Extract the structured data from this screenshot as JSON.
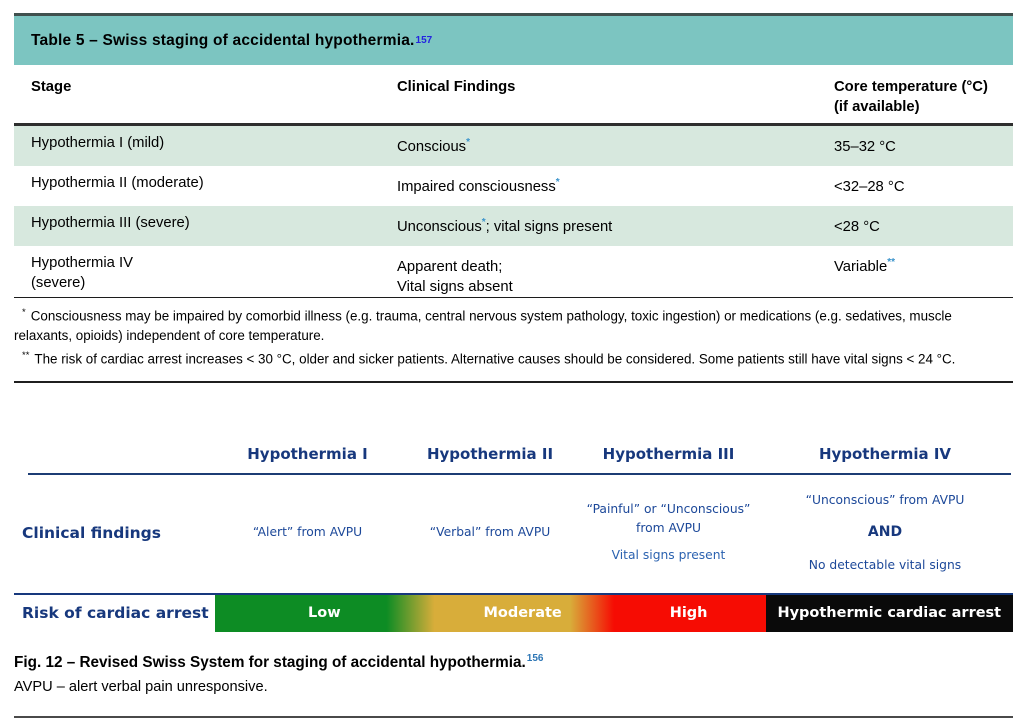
{
  "table": {
    "title": "Table 5 – Swiss staging of accidental hypothermia.",
    "title_ref": "157",
    "header": {
      "col1": "Stage",
      "col2": "Clinical Findings",
      "col3_line1": "Core temperature (°C)",
      "col3_line2": "(if available)"
    },
    "rows": [
      {
        "stage_line1": "Hypothermia I (mild)",
        "stage_line2": "",
        "findings_pre": "Conscious",
        "findings_star": "*",
        "findings_post": "",
        "findings_line2": "",
        "temp": "35–32 °C",
        "temp_star": ""
      },
      {
        "stage_line1": "Hypothermia II (moderate)",
        "stage_line2": "",
        "findings_pre": "Impaired consciousness",
        "findings_star": "*",
        "findings_post": "",
        "findings_line2": "",
        "temp": "<32–28 °C",
        "temp_star": ""
      },
      {
        "stage_line1": "Hypothermia III (severe)",
        "stage_line2": "",
        "findings_pre": "Unconscious",
        "findings_star": "*",
        "findings_post": "; vital signs present",
        "findings_line2": "",
        "temp": "<28 °C",
        "temp_star": ""
      },
      {
        "stage_line1": "Hypothermia IV",
        "stage_line2": "(severe)",
        "findings_pre": "Apparent death;",
        "findings_star": "",
        "findings_post": "",
        "findings_line2": "Vital signs absent",
        "temp": "Variable",
        "temp_star": "**"
      }
    ],
    "footnotes": [
      {
        "marker": "*",
        "text": "Consciousness may be impaired by comorbid illness (e.g. trauma, central nervous system pathology, toxic ingestion) or medications (e.g. sedatives, muscle relaxants, opioids) independent of core temperature."
      },
      {
        "marker": "**",
        "text": "The risk of cardiac arrest increases < 30 °C, older and sicker patients. Alternative causes should be considered. Some patients still have vital signs < 24 °C."
      }
    ],
    "colors": {
      "title_bg": "#7cc5c1",
      "row_highlight": "#d7e8de",
      "ref_link": "#2424e0",
      "footnote_link": "#3a93cb"
    }
  },
  "figure": {
    "column_headers": [
      "Hypothermia I",
      "Hypothermia II",
      "Hypothermia III",
      "Hypothermia IV"
    ],
    "row_label": "Clinical findings",
    "cells": {
      "c1": "“Alert” from AVPU",
      "c2": "“Verbal” from AVPU",
      "c3_line1": "“Painful” or “Unconscious”",
      "c3_line2": "from AVPU",
      "c3_line3": "Vital signs present",
      "c4_line1": "“Unconscious”  from AVPU",
      "c4_and": "AND",
      "c4_line3": "No detectable vital signs"
    },
    "risk": {
      "label": "Risk of cardiac arrest",
      "segments": [
        {
          "label": "Low",
          "color": "#0d8c24"
        },
        {
          "label": "Moderate",
          "color": "#d8ad3a"
        },
        {
          "label": "High",
          "color": "#f60c03"
        },
        {
          "label": "Hypothermic cardiac arrest",
          "color": "#0a0a0a"
        }
      ]
    },
    "caption": "Fig. 12 – Revised Swiss System for staging of accidental hypothermia.",
    "caption_ref": "156",
    "note": "AVPU – alert verbal pain unresponsive.",
    "colors": {
      "heading_text": "#17387d",
      "cell_text": "#1c4899"
    }
  }
}
